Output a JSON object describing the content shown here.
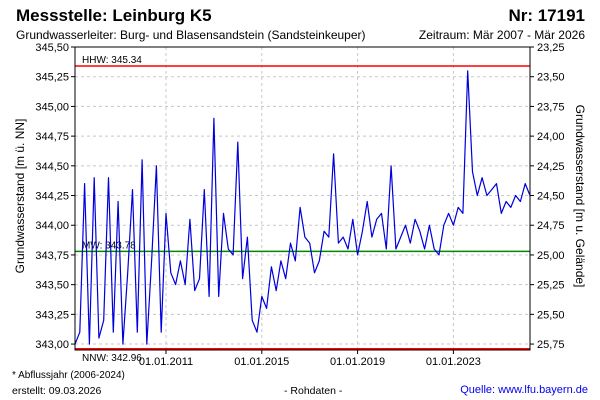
{
  "header": {
    "station": "Messstelle: Leinburg K5",
    "number": "Nr: 17191",
    "aquifer": "Grundwasserleiter:  Burg- und Blasensandstein (Sandsteinkeuper)",
    "period": "Zeitraum: Mär 2007 - Mär 2026"
  },
  "footer": {
    "footnote": "* Abflussjahr (2006-2024)",
    "created": "erstellt:  09.03.2026",
    "rawdata": "- Rohdaten -",
    "source": "Quelle: www.lfu.bayern.de"
  },
  "colors": {
    "series": "#0000dd",
    "hhw_line": "#ff0000",
    "nnw_line": "#ff0000",
    "mw_line": "#008800",
    "grid": "#c8c8c8"
  },
  "chart_data": {
    "type": "line",
    "ylabel": "Grundwasserstand [m ü. NN]",
    "ylabel_right": "Grundwasserstand [m u. Gelände]",
    "ylim": [
      342.95,
      345.5
    ],
    "ylim_right": [
      25.8,
      23.25
    ],
    "y_ticks": [
      "343,00",
      "343,25",
      "343,50",
      "343,75",
      "344,00",
      "344,25",
      "344,50",
      "344,75",
      "345,00",
      "345,25",
      "345,50"
    ],
    "y_ticks_right": [
      "25,75",
      "25,50",
      "25,25",
      "25,00",
      "24,75",
      "24,50",
      "24,25",
      "24,00",
      "23,75",
      "23,50",
      "23,25"
    ],
    "x_ticks": [
      "01.01.2011",
      "01.01.2015",
      "01.01.2019",
      "01.01.2023"
    ],
    "x_tick_years": [
      2011,
      2015,
      2019,
      2023
    ],
    "xlim": [
      2007.2,
      2026.2
    ],
    "grid": true,
    "reference_lines": [
      {
        "label": "HHW: 345.34",
        "value": 345.34
      },
      {
        "label": "MW: 343.78",
        "value": 343.78
      },
      {
        "label": "NNW: 342.96",
        "value": 342.96
      }
    ],
    "series": [
      {
        "x": [
          2007.2,
          2007.4,
          2007.6,
          2007.8,
          2008.0,
          2008.2,
          2008.4,
          2008.6,
          2008.8,
          2009.0,
          2009.2,
          2009.4,
          2009.6,
          2009.8,
          2010.0,
          2010.2,
          2010.4,
          2010.6,
          2010.8,
          2011.0,
          2011.2,
          2011.4,
          2011.6,
          2011.8,
          2012.0,
          2012.2,
          2012.4,
          2012.6,
          2012.8,
          2013.0,
          2013.2,
          2013.4,
          2013.6,
          2013.8,
          2014.0,
          2014.2,
          2014.4,
          2014.6,
          2014.8,
          2015.0,
          2015.2,
          2015.4,
          2015.6,
          2015.8,
          2016.0,
          2016.2,
          2016.4,
          2016.6,
          2016.8,
          2017.0,
          2017.2,
          2017.4,
          2017.6,
          2017.8,
          2018.0,
          2018.2,
          2018.4,
          2018.6,
          2018.8,
          2019.0,
          2019.2,
          2019.4,
          2019.6,
          2019.8,
          2020.0,
          2020.2,
          2020.4,
          2020.6,
          2020.8,
          2021.0,
          2021.2,
          2021.4,
          2021.6,
          2021.8,
          2022.0,
          2022.2,
          2022.4,
          2022.6,
          2022.8,
          2023.0,
          2023.2,
          2023.4,
          2023.6,
          2023.8,
          2024.0,
          2024.2,
          2024.4,
          2024.6,
          2024.8,
          2025.0,
          2025.2,
          2025.4,
          2025.6,
          2025.8,
          2026.0,
          2026.2
        ],
        "values": [
          343.0,
          343.1,
          344.35,
          343.0,
          344.4,
          343.05,
          343.2,
          344.4,
          343.1,
          344.2,
          343.0,
          343.6,
          344.3,
          343.1,
          344.55,
          343.0,
          343.7,
          344.5,
          343.1,
          344.1,
          343.6,
          343.5,
          343.7,
          343.5,
          344.05,
          343.45,
          343.55,
          344.3,
          343.4,
          344.9,
          343.4,
          344.1,
          343.8,
          343.75,
          344.7,
          343.55,
          343.9,
          343.2,
          343.1,
          343.4,
          343.3,
          343.65,
          343.45,
          343.7,
          343.55,
          343.85,
          343.7,
          344.15,
          343.9,
          343.85,
          343.6,
          343.7,
          343.95,
          343.9,
          344.6,
          343.85,
          343.9,
          343.8,
          344.05,
          343.75,
          343.95,
          344.2,
          343.9,
          344.05,
          344.1,
          343.8,
          344.5,
          343.8,
          343.9,
          344.0,
          343.85,
          344.05,
          343.95,
          343.8,
          344.0,
          343.8,
          343.75,
          344.0,
          344.1,
          344.0,
          344.15,
          344.1,
          345.3,
          344.45,
          344.25,
          344.4,
          344.25,
          344.3,
          344.35,
          344.1,
          344.2,
          344.15,
          344.25,
          344.2,
          344.35,
          344.25
        ]
      }
    ]
  }
}
